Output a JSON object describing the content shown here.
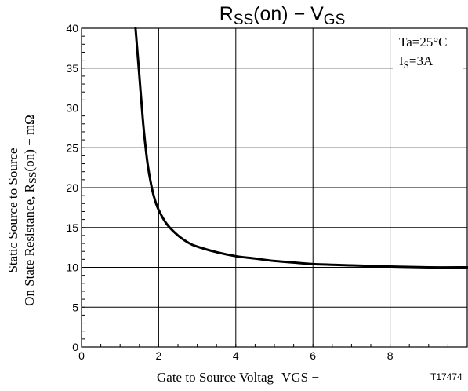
{
  "chart_data": {
    "type": "line",
    "title_base": "R",
    "title_sub": "SS",
    "title_mid": "(on)  −  V",
    "title_sub2": "GS",
    "ylabel_line1": "Static Source to Source",
    "ylabel_line2_base": "On State Resistance, R",
    "ylabel_line2_sub": "SS",
    "ylabel_line2_end": "(on)  −  mΩ",
    "xlabel_base": "Gate to Source Voltag",
    "xlabel_sub": "VGS",
    "xlabel_end": " −",
    "figure_id": "T17474",
    "annotation_line1": "Ta=25°C",
    "annotation_line2_base": "I",
    "annotation_line2_sub": "S",
    "annotation_line2_end": "=3A",
    "xlim": [
      0,
      10
    ],
    "ylim": [
      0,
      40
    ],
    "x_ticks": [
      0,
      2,
      4,
      6,
      8
    ],
    "y_ticks": [
      0,
      5,
      10,
      15,
      20,
      25,
      30,
      35,
      40
    ],
    "grid": true,
    "series": [
      {
        "x": [
          1.4,
          1.5,
          1.6,
          1.7,
          1.8,
          1.9,
          2.0,
          2.2,
          2.5,
          2.8,
          3.0,
          3.5,
          4.0,
          4.5,
          5.0,
          5.5,
          6.0,
          7.0,
          8.0,
          9.0,
          10.0
        ],
        "y": [
          40.0,
          34.0,
          28.0,
          23.5,
          20.5,
          18.5,
          17.2,
          15.5,
          14.0,
          13.0,
          12.6,
          11.9,
          11.4,
          11.1,
          10.8,
          10.6,
          10.4,
          10.25,
          10.1,
          10.0,
          10.0
        ]
      }
    ]
  }
}
